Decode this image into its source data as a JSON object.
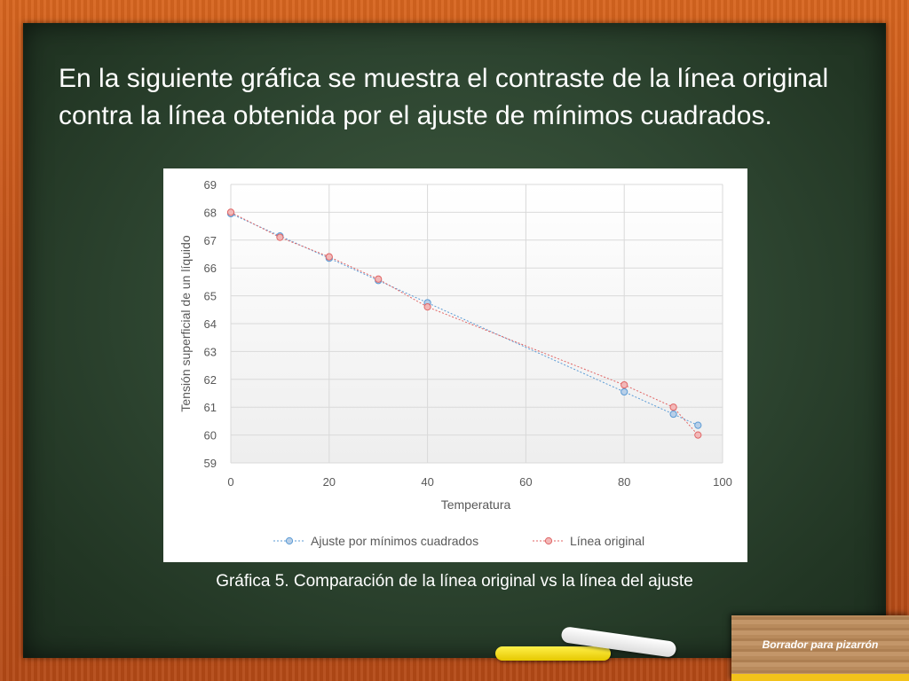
{
  "slide": {
    "heading": "En la siguiente gráfica se muestra el contraste de la línea original contra la línea obtenida por el ajuste de mínimos cuadrados.",
    "caption": "Gráfica 5. Comparación de la línea original vs la línea del ajuste",
    "eraser_label": "Borrador para pizarrón"
  },
  "colors": {
    "board": "#2f4732",
    "frame": "#c4571b",
    "series_fit": "#5b9bd5",
    "series_original": "#e06666"
  },
  "chart_data": {
    "type": "scatter",
    "title": "",
    "xlabel": "Temperatura",
    "ylabel": "Tensión superficial de un líquido",
    "xlim": [
      0,
      100
    ],
    "ylim": [
      59,
      69
    ],
    "xticks": [
      "0",
      "20",
      "40",
      "60",
      "80",
      "100"
    ],
    "yticks": [
      "59",
      "60",
      "61",
      "62",
      "63",
      "64",
      "65",
      "66",
      "67",
      "68",
      "69"
    ],
    "grid": true,
    "legend_position": "bottom",
    "series": [
      {
        "name": "Ajuste por mínimos cuadrados",
        "x": [
          0,
          10,
          20,
          30,
          40,
          80,
          90,
          95
        ],
        "y": [
          67.95,
          67.15,
          66.35,
          65.55,
          64.75,
          61.55,
          60.75,
          60.35
        ]
      },
      {
        "name": "Línea original",
        "x": [
          0,
          10,
          20,
          30,
          40,
          80,
          90,
          95
        ],
        "y": [
          68.0,
          67.1,
          66.4,
          65.6,
          64.6,
          61.8,
          61.0,
          60.0
        ]
      }
    ]
  }
}
